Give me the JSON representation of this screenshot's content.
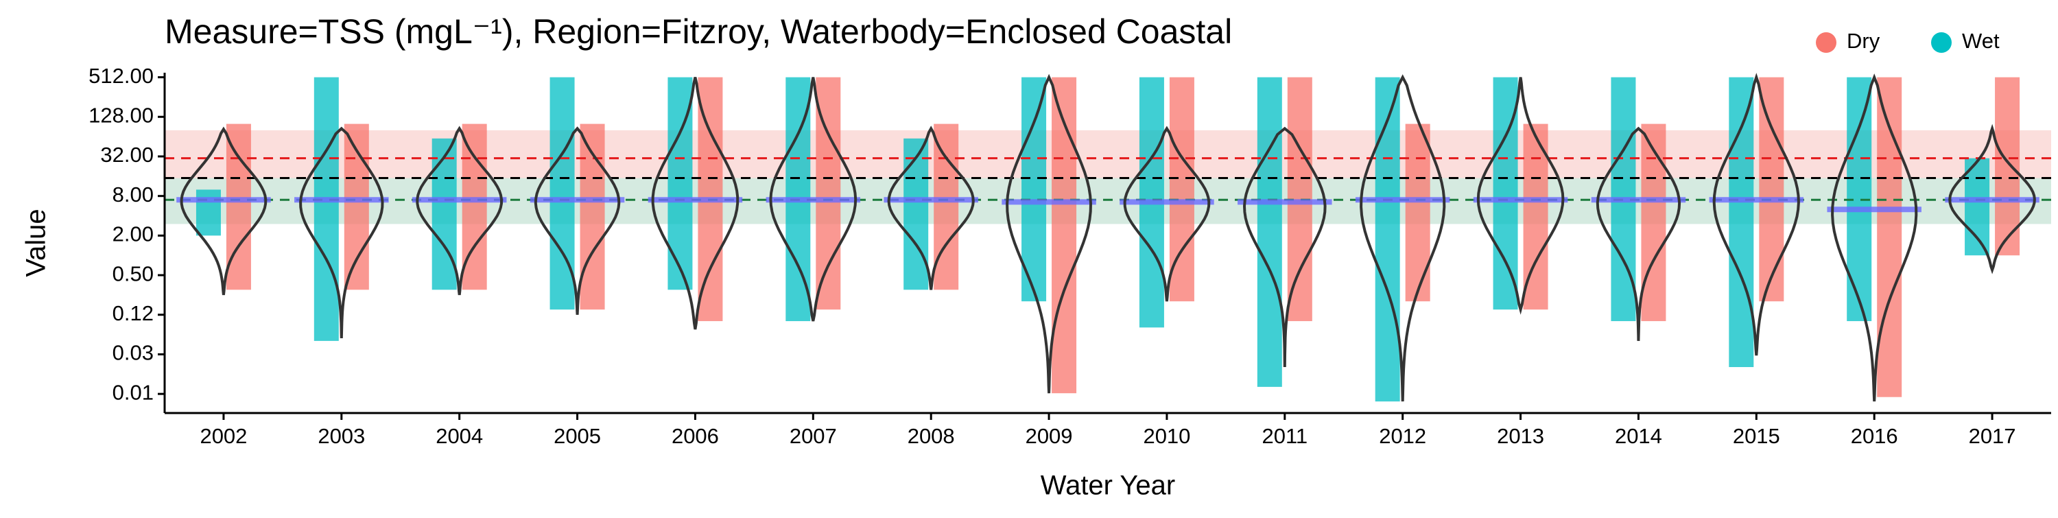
{
  "chart_data": {
    "type": "violin",
    "title": "Measure=TSS (mgL⁻¹), Region=Fitzroy, Waterbody=Enclosed Coastal",
    "x_label": "Water Year",
    "y_label": "Value",
    "log_scale": true,
    "categories": [
      "2002",
      "2003",
      "2004",
      "2005",
      "2006",
      "2007",
      "2008",
      "2009",
      "2010",
      "2011",
      "2012",
      "2013",
      "2014",
      "2015",
      "2016",
      "2017"
    ],
    "ylim": [
      0.004,
      600
    ],
    "yticks": [
      {
        "value": 0.0078125,
        "label": "0.01"
      },
      {
        "value": 0.03125,
        "label": "0.03"
      },
      {
        "value": 0.125,
        "label": "0.12"
      },
      {
        "value": 0.5,
        "label": "0.50"
      },
      {
        "value": 2,
        "label": "2.00"
      },
      {
        "value": 8,
        "label": "8.00"
      },
      {
        "value": 32,
        "label": "32.00"
      },
      {
        "value": 128,
        "label": "128.00"
      },
      {
        "value": 512,
        "label": "512.00"
      }
    ],
    "series": [
      {
        "name": "Dry",
        "color": "#f8766d",
        "min": [
          0.3,
          0.3,
          0.3,
          0.15,
          0.1,
          0.15,
          0.3,
          0.008,
          0.2,
          0.1,
          0.2,
          0.15,
          0.1,
          0.2,
          0.007,
          1
        ],
        "max": [
          100,
          100,
          100,
          100,
          512,
          512,
          100,
          512,
          512,
          512,
          100,
          100,
          100,
          512,
          512,
          512
        ]
      },
      {
        "name": "Wet",
        "color": "#00bfc4",
        "min": [
          2,
          0.05,
          0.3,
          0.15,
          0.3,
          0.1,
          0.3,
          0.2,
          0.08,
          0.01,
          0.006,
          0.15,
          0.1,
          0.02,
          0.1,
          1
        ],
        "max": [
          10,
          512,
          60,
          512,
          512,
          512,
          60,
          512,
          512,
          512,
          512,
          512,
          512,
          512,
          512,
          30
        ]
      }
    ],
    "violin_min": [
      0.25,
      0.055,
      0.25,
      0.125,
      0.075,
      0.1,
      0.3,
      0.008,
      0.2,
      0.02,
      0.006,
      0.15,
      0.05,
      0.03,
      0.006,
      0.6
    ],
    "violin_max": [
      83,
      85,
      85,
      85,
      512,
      512,
      85,
      512,
      85,
      85,
      512,
      512,
      85,
      512,
      512,
      85
    ],
    "medians": [
      7,
      7,
      7,
      7,
      7,
      7,
      7,
      6.5,
      6.5,
      6.5,
      7,
      7,
      7,
      7,
      5,
      7
    ],
    "bands": [
      {
        "lim": [
          15,
          80
        ],
        "color": "#f8c8c4"
      },
      {
        "lim": [
          3,
          15
        ],
        "color": "#b9dccb"
      }
    ],
    "ref_lines": [
      {
        "value": 30,
        "color": "#e41a1c"
      },
      {
        "value": 15,
        "color": "#000000"
      },
      {
        "value": 7,
        "color": "#1b7a3c"
      }
    ]
  }
}
